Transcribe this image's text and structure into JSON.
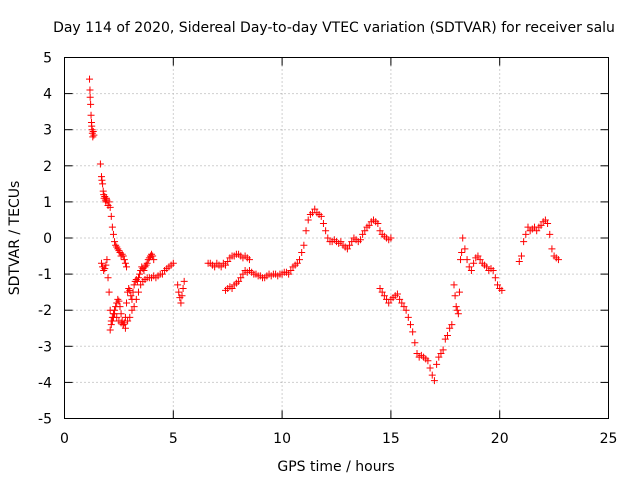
{
  "chart_data": {
    "type": "scatter",
    "title": "Day 114 of 2020, Sidereal Day-to-day VTEC variation (SDTVAR) for receiver salu",
    "xlabel": "GPS time / hours",
    "ylabel": "SDTVAR / TECUs",
    "xlim": [
      0,
      25
    ],
    "ylim": [
      -5,
      5
    ],
    "xticks": [
      0,
      5,
      10,
      15,
      20,
      25
    ],
    "yticks": [
      -5,
      -4,
      -3,
      -2,
      -1,
      0,
      1,
      2,
      3,
      4,
      5
    ],
    "xtick_labels": [
      "0",
      "5",
      "10",
      "15",
      "20",
      "25"
    ],
    "ytick_labels": [
      "-5",
      "-4",
      "-3",
      "-2",
      "-1",
      "0",
      "1",
      "2",
      "3",
      "4",
      "5"
    ],
    "grid": true,
    "marker": "+",
    "color": "#ff0000",
    "series": [
      {
        "name": "SDTVAR",
        "x": [
          1.15,
          1.17,
          1.18,
          1.2,
          1.22,
          1.24,
          1.25,
          1.27,
          1.28,
          1.3,
          1.32,
          1.35,
          1.65,
          1.7,
          1.72,
          1.75,
          1.78,
          1.8,
          1.82,
          1.85,
          1.88,
          1.9,
          1.92,
          1.95,
          2.0,
          2.05,
          2.1,
          2.15,
          2.2,
          2.25,
          2.3,
          2.35,
          2.4,
          2.45,
          2.5,
          2.55,
          2.6,
          2.65,
          2.7,
          2.75,
          2.8,
          2.85,
          1.7,
          1.75,
          1.8,
          1.85,
          1.9,
          1.95,
          2.0,
          2.05,
          2.1,
          2.15,
          2.2,
          2.25,
          2.3,
          2.35,
          2.4,
          2.45,
          2.5,
          2.55,
          2.6,
          2.65,
          2.7,
          2.75,
          2.8,
          2.85,
          2.9,
          2.95,
          3.0,
          3.05,
          3.1,
          3.15,
          3.2,
          3.25,
          3.3,
          3.35,
          3.4,
          3.45,
          3.5,
          3.55,
          3.6,
          3.65,
          3.7,
          3.75,
          3.8,
          3.85,
          3.9,
          3.95,
          4.0,
          4.05,
          4.1,
          2.1,
          2.15,
          2.2,
          2.25,
          2.3,
          2.4,
          2.5,
          2.6,
          2.7,
          2.8,
          2.9,
          3.0,
          3.1,
          3.2,
          3.3,
          3.4,
          3.5,
          3.6,
          3.7,
          3.8,
          3.9,
          4.0,
          4.1,
          4.2,
          4.3,
          4.4,
          4.5,
          4.6,
          4.7,
          4.8,
          4.9,
          5.0,
          5.2,
          5.25,
          5.3,
          5.35,
          5.4,
          5.45,
          5.5,
          6.6,
          6.7,
          6.8,
          6.9,
          7.0,
          7.1,
          7.2,
          7.3,
          7.4,
          7.5,
          7.6,
          7.7,
          7.8,
          7.9,
          8.0,
          8.1,
          8.2,
          8.3,
          8.4,
          8.5,
          7.4,
          7.5,
          7.6,
          7.7,
          7.8,
          7.9,
          8.0,
          8.1,
          8.2,
          8.3,
          8.4,
          8.5,
          8.6,
          8.7,
          8.8,
          8.9,
          9.0,
          9.1,
          9.2,
          9.3,
          9.4,
          9.5,
          9.6,
          9.7,
          9.8,
          9.9,
          10.0,
          10.1,
          10.2,
          10.3,
          10.4,
          10.5,
          10.6,
          10.7,
          10.8,
          10.9,
          11.0,
          11.1,
          11.2,
          11.3,
          11.4,
          11.5,
          11.6,
          11.7,
          11.8,
          11.9,
          12.0,
          12.1,
          12.2,
          12.3,
          12.4,
          12.5,
          12.6,
          12.7,
          12.8,
          12.9,
          13.0,
          13.1,
          13.2,
          13.3,
          13.4,
          13.5,
          13.6,
          13.7,
          13.8,
          13.9,
          14.0,
          14.1,
          14.2,
          14.3,
          14.4,
          14.5,
          14.6,
          14.7,
          14.8,
          14.9,
          15.0,
          14.5,
          14.6,
          14.7,
          14.8,
          14.9,
          15.0,
          15.1,
          15.2,
          15.3,
          15.4,
          15.5,
          15.6,
          15.7,
          15.8,
          15.9,
          16.0,
          16.1,
          16.2,
          16.3,
          16.4,
          16.5,
          16.6,
          16.7,
          16.8,
          16.9,
          17.0,
          17.1,
          17.2,
          17.3,
          17.4,
          17.5,
          17.6,
          17.7,
          17.8,
          17.9,
          17.95,
          18.0,
          18.05,
          18.1,
          18.15,
          18.2,
          18.25,
          18.3,
          18.4,
          18.5,
          18.6,
          18.7,
          18.8,
          18.9,
          19.0,
          19.1,
          19.2,
          19.3,
          19.4,
          19.5,
          19.6,
          19.7,
          19.8,
          19.9,
          20.0,
          20.1,
          20.9,
          21.0,
          21.1,
          21.2,
          21.3,
          21.4,
          21.5,
          21.6,
          21.7,
          21.8,
          21.9,
          22.0,
          22.1,
          22.2,
          22.3,
          22.4,
          22.5,
          22.6,
          22.7
        ],
        "y": [
          4.4,
          4.1,
          3.9,
          3.7,
          3.4,
          3.2,
          3.1,
          3.0,
          2.9,
          2.8,
          2.95,
          2.85,
          2.05,
          1.7,
          1.6,
          1.5,
          1.3,
          1.2,
          1.1,
          1.15,
          1.05,
          1.0,
          1.1,
          1.05,
          0.9,
          1.0,
          0.85,
          0.6,
          0.3,
          0.1,
          -0.1,
          -0.2,
          -0.25,
          -0.3,
          -0.35,
          -0.4,
          -0.5,
          -0.45,
          -0.5,
          -0.6,
          -0.7,
          -0.8,
          -0.7,
          -0.8,
          -0.9,
          -0.85,
          -0.75,
          -0.6,
          -1.1,
          -1.5,
          -2.0,
          -2.3,
          -2.2,
          -2.1,
          -2.0,
          -1.9,
          -1.8,
          -1.7,
          -1.75,
          -1.9,
          -2.1,
          -2.3,
          -2.4,
          -2.35,
          -2.2,
          -1.8,
          -1.5,
          -1.4,
          -1.45,
          -1.6,
          -1.7,
          -1.5,
          -1.3,
          -1.2,
          -1.15,
          -1.2,
          -1.1,
          -1.0,
          -0.9,
          -0.8,
          -0.85,
          -0.9,
          -0.8,
          -0.75,
          -0.7,
          -0.6,
          -0.55,
          -0.5,
          -0.45,
          -0.5,
          -0.6,
          -2.55,
          -2.4,
          -2.3,
          -2.2,
          -2.1,
          -2.2,
          -2.3,
          -2.35,
          -2.4,
          -2.5,
          -2.3,
          -2.2,
          -2.0,
          -1.9,
          -1.7,
          -1.5,
          -1.3,
          -1.2,
          -1.15,
          -1.1,
          -1.1,
          -1.1,
          -1.05,
          -1.1,
          -1.05,
          -1.0,
          -1.0,
          -0.9,
          -0.85,
          -0.8,
          -0.75,
          -0.7,
          -1.3,
          -1.5,
          -1.65,
          -1.8,
          -1.6,
          -1.4,
          -1.2,
          -0.7,
          -0.7,
          -0.75,
          -0.8,
          -0.7,
          -0.75,
          -0.8,
          -0.7,
          -0.75,
          -0.65,
          -0.55,
          -0.5,
          -0.5,
          -0.45,
          -0.45,
          -0.5,
          -0.55,
          -0.5,
          -0.55,
          -0.6,
          -1.45,
          -1.4,
          -1.35,
          -1.4,
          -1.3,
          -1.25,
          -1.2,
          -1.1,
          -1.0,
          -0.9,
          -0.95,
          -0.9,
          -0.95,
          -1.0,
          -1.0,
          -1.05,
          -1.05,
          -1.1,
          -1.1,
          -1.05,
          -1.0,
          -1.05,
          -1.0,
          -1.0,
          -1.05,
          -1.0,
          -1.0,
          -0.95,
          -0.95,
          -1.0,
          -0.9,
          -0.8,
          -0.75,
          -0.7,
          -0.6,
          -0.4,
          -0.2,
          0.2,
          0.5,
          0.65,
          0.7,
          0.8,
          0.7,
          0.65,
          0.6,
          0.4,
          0.2,
          0.0,
          -0.1,
          -0.1,
          -0.05,
          -0.1,
          -0.15,
          -0.1,
          -0.2,
          -0.25,
          -0.3,
          -0.2,
          -0.1,
          0.0,
          -0.05,
          -0.1,
          -0.05,
          0.1,
          0.2,
          0.3,
          0.35,
          0.45,
          0.5,
          0.45,
          0.4,
          0.2,
          0.1,
          0.05,
          0.0,
          -0.05,
          0.0,
          -1.4,
          -1.5,
          -1.6,
          -1.7,
          -1.8,
          -1.7,
          -1.65,
          -1.6,
          -1.55,
          -1.7,
          -1.8,
          -1.9,
          -2.0,
          -2.2,
          -2.4,
          -2.6,
          -2.9,
          -3.2,
          -3.3,
          -3.25,
          -3.3,
          -3.35,
          -3.4,
          -3.6,
          -3.8,
          -3.95,
          -3.5,
          -3.3,
          -3.2,
          -3.1,
          -2.8,
          -2.7,
          -2.5,
          -2.4,
          -1.3,
          -1.6,
          -1.9,
          -2.0,
          -2.1,
          -1.5,
          -0.6,
          -0.4,
          0.0,
          -0.3,
          -0.6,
          -0.8,
          -0.9,
          -0.7,
          -0.55,
          -0.5,
          -0.6,
          -0.7,
          -0.75,
          -0.8,
          -0.9,
          -0.85,
          -0.9,
          -1.1,
          -1.3,
          -1.4,
          -1.45,
          -0.65,
          -0.5,
          -0.1,
          0.1,
          0.3,
          0.2,
          0.25,
          0.3,
          0.2,
          0.3,
          0.35,
          0.45,
          0.5,
          0.4,
          0.1,
          -0.3,
          -0.5,
          -0.55,
          -0.6
        ]
      }
    ]
  }
}
